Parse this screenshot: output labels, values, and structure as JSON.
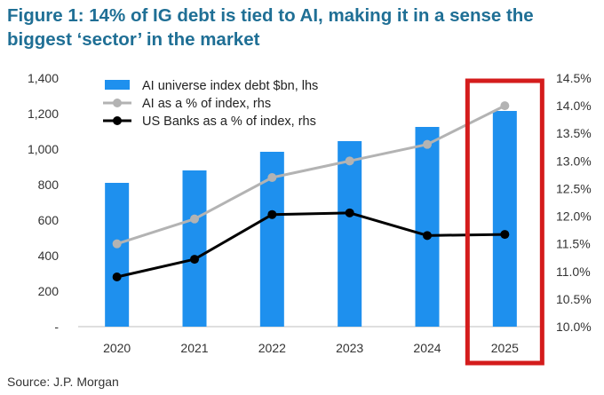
{
  "title": "Figure 1: 14% of IG debt is tied to AI, making it in a sense the biggest ‘sector’ in the market",
  "source": "Source: J.P. Morgan",
  "colors": {
    "title": "#1f6f95",
    "bars": "#1e90ee",
    "ai_line": "#b3b3b3",
    "banks_line": "#000000",
    "highlight_box": "#d41c1c"
  },
  "chart_data": {
    "type": "bar",
    "categories": [
      "2020",
      "2021",
      "2022",
      "2023",
      "2024",
      "2025"
    ],
    "ylim_left": [
      0,
      1400
    ],
    "yticks_left": [
      "-",
      "200",
      "400",
      "600",
      "800",
      "1,000",
      "1,200",
      "1,400"
    ],
    "ylim_right": [
      10.0,
      14.5
    ],
    "yticks_right": [
      "10.0%",
      "10.5%",
      "11.0%",
      "11.5%",
      "12.0%",
      "12.5%",
      "13.0%",
      "13.5%",
      "14.0%",
      "14.5%"
    ],
    "series": [
      {
        "name": "AI universe index debt $bn, lhs",
        "type": "bar",
        "axis": "left",
        "values": [
          810,
          880,
          985,
          1045,
          1125,
          1215
        ]
      },
      {
        "name": "AI as a % of index, rhs",
        "type": "line",
        "axis": "right",
        "values": [
          11.5,
          11.95,
          12.7,
          13.0,
          13.3,
          14.0
        ]
      },
      {
        "name": "US Banks as a % of index, rhs",
        "type": "line",
        "axis": "right",
        "values": [
          10.9,
          11.22,
          12.03,
          12.06,
          11.65,
          11.67
        ]
      }
    ],
    "legend_position": "top-left",
    "highlight_category": "2025",
    "grid": false
  }
}
